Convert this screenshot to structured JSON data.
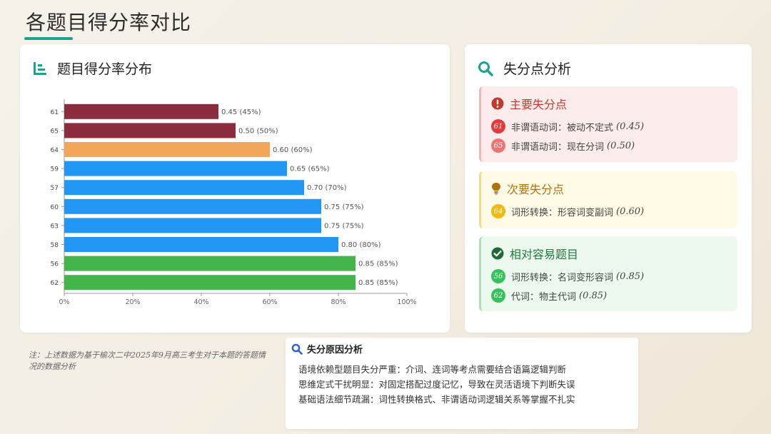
{
  "page": {
    "title": "各题目得分率对比"
  },
  "chart_card": {
    "title": "题目得分率分布",
    "icon": "bar-chart-icon"
  },
  "chart_data": {
    "type": "bar",
    "orientation": "horizontal",
    "categories": [
      "61",
      "65",
      "64",
      "59",
      "57",
      "60",
      "63",
      "58",
      "56",
      "62"
    ],
    "values": [
      0.45,
      0.5,
      0.6,
      0.65,
      0.7,
      0.75,
      0.75,
      0.8,
      0.85,
      0.85
    ],
    "data_labels": [
      "0.45 (45%)",
      "0.50 (50%)",
      "0.60 (60%)",
      "0.65 (65%)",
      "0.70 (70%)",
      "0.75 (75%)",
      "0.75 (75%)",
      "0.80 (80%)",
      "0.85 (85%)",
      "0.85 (85%)"
    ],
    "colors": [
      "#8b2c3f",
      "#8b2c3f",
      "#f2a65a",
      "#2196f3",
      "#2196f3",
      "#2196f3",
      "#2196f3",
      "#2196f3",
      "#43b54a",
      "#43b54a"
    ],
    "xlim": [
      0,
      1
    ],
    "xticks": [
      "0%",
      "20%",
      "40%",
      "60%",
      "80%",
      "100%"
    ],
    "title": "",
    "xlabel": "",
    "ylabel": "",
    "grid": false,
    "legend": "none"
  },
  "side_card": {
    "title": "失分点分析",
    "icon": "search-icon",
    "major": {
      "title": "主要失分点",
      "icon": "exclamation-icon",
      "items": [
        {
          "num": "61",
          "text": "非谓语动词：被动不定式",
          "score": "(0.45)"
        },
        {
          "num": "65",
          "text": "非谓语动词：现在分词",
          "score": "(0.50)"
        }
      ]
    },
    "minor": {
      "title": "次要失分点",
      "icon": "lightbulb-icon",
      "items": [
        {
          "num": "64",
          "text": "词形转换：形容词变副词",
          "score": "(0.60)"
        }
      ]
    },
    "easy": {
      "title": "相对容易题目",
      "icon": "check-icon",
      "items": [
        {
          "num": "56",
          "text": "词形转换：名词变形容词",
          "score": "(0.85)"
        },
        {
          "num": "62",
          "text": "代词：物主代词",
          "score": "(0.85)"
        }
      ]
    }
  },
  "note": "注：上述数据为基于榆次二中2025年9月高三考生对于本题的答题情况的数据分析",
  "reason": {
    "title": "失分原因分析",
    "icon": "search-icon",
    "lines": [
      "语境依赖型题目失分严重：介词、连词等考点需要结合语篇逻辑判断",
      "思维定式干扰明显：对固定搭配过度记忆，导致在灵活语境下判断失误",
      "基础语法细节疏漏：词性转换格式、非谓语动词逻辑关系等掌握不扎实"
    ]
  },
  "colors": {
    "accent": "#1aa394"
  }
}
